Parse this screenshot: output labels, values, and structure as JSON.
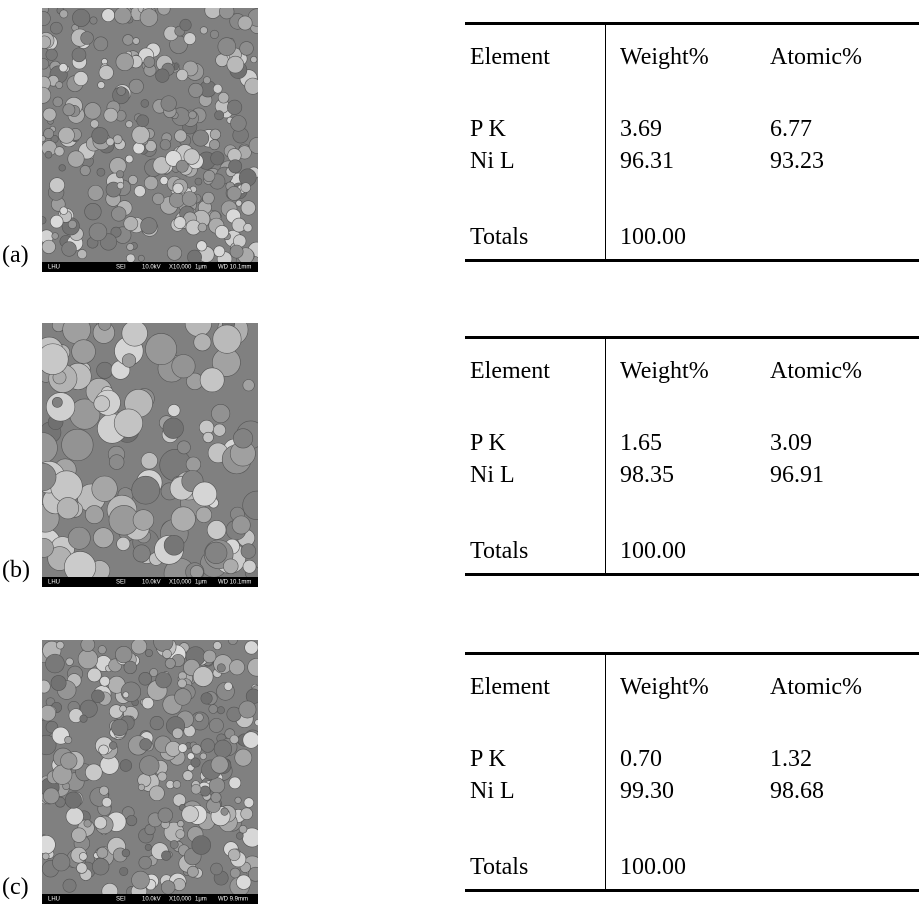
{
  "panels": [
    {
      "label": "(a)",
      "sem_bar": [
        "LHU",
        "SEI",
        "10.0kV",
        "X10,000",
        "1μm",
        "WD 10.1mm"
      ],
      "table": {
        "header": [
          "Element",
          "Weight%",
          "Atomic%"
        ],
        "rows": [
          [
            "P K",
            "3.69",
            "6.77"
          ],
          [
            "Ni L",
            "96.31",
            "93.23"
          ]
        ],
        "totals": [
          "Totals",
          "100.00"
        ]
      }
    },
    {
      "label": "(b)",
      "sem_bar": [
        "LHU",
        "SEI",
        "10.0kV",
        "X10,000",
        "1μm",
        "WD 10.1mm"
      ],
      "table": {
        "header": [
          "Element",
          "Weight%",
          "Atomic%"
        ],
        "rows": [
          [
            "P K",
            "1.65",
            "3.09"
          ],
          [
            "Ni L",
            "98.35",
            "96.91"
          ]
        ],
        "totals": [
          "Totals",
          "100.00"
        ]
      }
    },
    {
      "label": "(c)",
      "sem_bar": [
        "LHU",
        "SEI",
        "10.0kV",
        "X10,000",
        "1μm",
        "WD 9.9mm"
      ],
      "table": {
        "header": [
          "Element",
          "Weight%",
          "Atomic%"
        ],
        "rows": [
          [
            "P K",
            "0.70",
            "1.32"
          ],
          [
            "Ni L",
            "99.30",
            "98.68"
          ]
        ],
        "totals": [
          "Totals",
          "100.00"
        ]
      }
    }
  ]
}
